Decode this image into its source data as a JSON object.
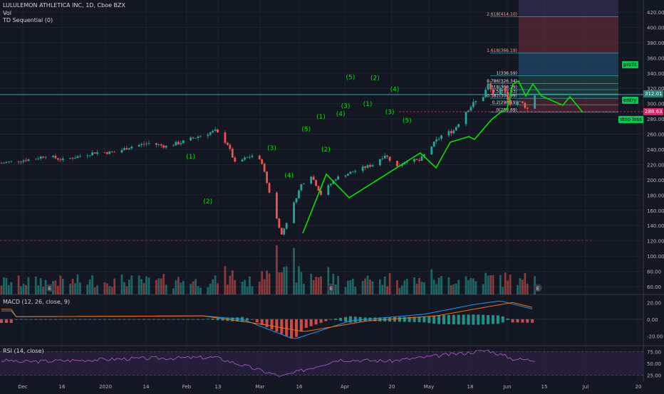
{
  "header": {
    "title": "LULULEMON ATHLETICA INC, 1D, Cboe BZX",
    "vol_label": "Vol",
    "td_label": "TD Sequential (0)"
  },
  "macd_label": "MACD (12, 26, close, 9)",
  "rsi_label": "RSI (14, close)",
  "colors": {
    "background": "#131722",
    "up": "#26a69a",
    "down": "#ef5350",
    "wave": "#00e600",
    "fib_line": "#4dd0e1",
    "macd": "#2196f3",
    "signal": "#ff6d00",
    "rsi": "#b05fc8",
    "price_tag": "#2a7d74",
    "stop_tag": "#e91e63"
  },
  "time_axis": [
    "Dec",
    "16",
    "2020",
    "14",
    "Feb",
    "13",
    "Mar",
    "16",
    "Apr",
    "20",
    "May",
    "18",
    "Jun",
    "15",
    "Jul",
    "20"
  ],
  "price_axis": [
    "420.00",
    "400.00",
    "380.00",
    "360.00",
    "340.00",
    "320.00",
    "300.00",
    "280.00",
    "260.00",
    "240.00",
    "220.00",
    "200.00",
    "180.00",
    "160.00",
    "140.00",
    "120.00",
    "100.00",
    "80.00",
    "60.00"
  ],
  "macd_axis": [
    "20.00",
    "0.00",
    "-20.00"
  ],
  "rsi_axis": [
    "75.00",
    "50.00",
    "25.00"
  ],
  "price_tags": {
    "last": "312.01",
    "stop": "288.63"
  },
  "side_labels": {
    "profit": "profit",
    "entry": "entry",
    "stop": "stop loss"
  },
  "earnings_marker": "E",
  "fib_levels": [
    {
      "label": "2.618(414.10)",
      "price": 414.1
    },
    {
      "label": "1.618(366.19)",
      "price": 366.19
    },
    {
      "label": "1(336.59)",
      "price": 336.59
    },
    {
      "label": "0.786(326.34)",
      "price": 326.34
    },
    {
      "label": "0.618(318.29)",
      "price": 318.29
    },
    {
      "label": "0.5(312.63)",
      "price": 312.63
    },
    {
      "label": "0.382(306.99)",
      "price": 306.99
    },
    {
      "label": "0.2(298.19)",
      "price": 298.19
    },
    {
      "label": "0(288.69)",
      "price": 288.69
    }
  ],
  "wave_labels": [
    {
      "label": "(1)",
      "date": 77,
      "price": 228
    },
    {
      "label": "(2)",
      "date": 84,
      "price": 169
    },
    {
      "label": "(3)",
      "date": 110,
      "price": 239
    },
    {
      "label": "(4)",
      "date": 117,
      "price": 203
    },
    {
      "label": "(5)",
      "date": 124,
      "price": 264
    },
    {
      "label": "(1)",
      "date": 130,
      "price": 280
    },
    {
      "label": "(2)",
      "date": 132,
      "price": 237
    },
    {
      "label": "(3)",
      "date": 140,
      "price": 294
    },
    {
      "label": "(4)",
      "date": 138,
      "price": 284
    },
    {
      "label": "(5)",
      "date": 142,
      "price": 332
    },
    {
      "label": "(1)",
      "date": 149,
      "price": 297
    },
    {
      "label": "(2)",
      "date": 152,
      "price": 331
    },
    {
      "label": "(3)",
      "date": 158,
      "price": 286
    },
    {
      "label": "(4)",
      "date": 160,
      "price": 316
    },
    {
      "label": "(5)",
      "date": 165,
      "price": 275
    }
  ],
  "chart_data": [
    {
      "type": "candlestick",
      "title": "LULULEMON ATHLETICA INC, 1D, Cboe BZX",
      "price_range": [
        50,
        430
      ],
      "x_range": [
        "2019-11-25",
        "2020-07-20"
      ],
      "series": [
        {
          "name": "price",
          "points": [
            [
              "2019-11-25",
              222
            ],
            [
              "2019-12-09",
              228
            ],
            [
              "2019-12-13",
              232
            ],
            [
              "2019-12-20",
              226
            ],
            [
              "2020-01-02",
              236
            ],
            [
              "2020-01-10",
              236
            ],
            [
              "2020-01-17",
              244
            ],
            [
              "2020-01-24",
              248
            ],
            [
              "2020-01-31",
              244
            ],
            [
              "2020-02-07",
              250
            ],
            [
              "2020-02-14",
              258
            ],
            [
              "2020-02-20",
              264
            ],
            [
              "2020-02-25",
              247
            ],
            [
              "2020-02-28",
              222
            ],
            [
              "2020-03-06",
              232
            ],
            [
              "2020-03-10",
              223
            ],
            [
              "2020-03-12",
              196
            ],
            [
              "2020-03-16",
              149
            ],
            [
              "2020-03-18",
              128
            ],
            [
              "2020-03-26",
              194
            ],
            [
              "2020-03-30",
              206
            ],
            [
              "2020-04-03",
              181
            ],
            [
              "2020-04-09",
              202
            ],
            [
              "2020-04-17",
              212
            ],
            [
              "2020-04-24",
              220
            ],
            [
              "2020-04-29",
              233
            ],
            [
              "2020-05-04",
              217
            ],
            [
              "2020-05-08",
              226
            ],
            [
              "2020-05-13",
              225
            ],
            [
              "2020-05-19",
              248
            ],
            [
              "2020-05-22",
              258
            ],
            [
              "2020-05-27",
              265
            ],
            [
              "2020-06-01",
              290
            ],
            [
              "2020-06-04",
              300
            ],
            [
              "2020-06-08",
              310
            ],
            [
              "2020-06-10",
              325
            ],
            [
              "2020-06-12",
              312
            ],
            [
              "2020-06-16",
              320
            ],
            [
              "2020-06-19",
              301
            ],
            [
              "2020-06-22",
              303
            ],
            [
              "2020-06-24",
              300
            ],
            [
              "2020-06-26",
              293
            ],
            [
              "2020-06-29",
              312
            ]
          ]
        }
      ],
      "volume": {
        "name": "Vol",
        "axis": [
          60,
          120
        ]
      }
    },
    {
      "type": "line",
      "title": "MACD (12, 26, close, 9)",
      "ylim": [
        -30,
        28
      ],
      "series": [
        {
          "name": "MACD",
          "points": [
            [
              "2019-12-01",
              3
            ],
            [
              "2020-02-15",
              4
            ],
            [
              "2020-03-02",
              0
            ],
            [
              "2020-03-23",
              -24
            ],
            [
              "2020-04-15",
              -2
            ],
            [
              "2020-05-15",
              6
            ],
            [
              "2020-06-05",
              18
            ],
            [
              "2020-06-15",
              22
            ],
            [
              "2020-07-01",
              10
            ]
          ]
        },
        {
          "name": "Signal",
          "points": [
            [
              "2019-12-01",
              3
            ],
            [
              "2020-02-15",
              4
            ],
            [
              "2020-03-10",
              -6
            ],
            [
              "2020-03-27",
              -15
            ],
            [
              "2020-04-22",
              -2
            ],
            [
              "2020-05-20",
              4
            ],
            [
              "2020-06-10",
              15
            ],
            [
              "2020-06-20",
              20
            ],
            [
              "2020-07-01",
              12
            ]
          ]
        }
      ]
    },
    {
      "type": "line",
      "title": "RSI (14, close)",
      "ylim": [
        15,
        85
      ],
      "bands": [
        25,
        75
      ],
      "series": [
        {
          "name": "RSI",
          "points": [
            [
              "2019-12-01",
              53
            ],
            [
              "2020-01-15",
              60
            ],
            [
              "2020-02-20",
              63
            ],
            [
              "2020-03-18",
              22
            ],
            [
              "2020-04-10",
              58
            ],
            [
              "2020-05-01",
              55
            ],
            [
              "2020-06-10",
              78
            ],
            [
              "2020-06-20",
              60
            ],
            [
              "2020-07-01",
              56
            ]
          ]
        }
      ]
    }
  ]
}
